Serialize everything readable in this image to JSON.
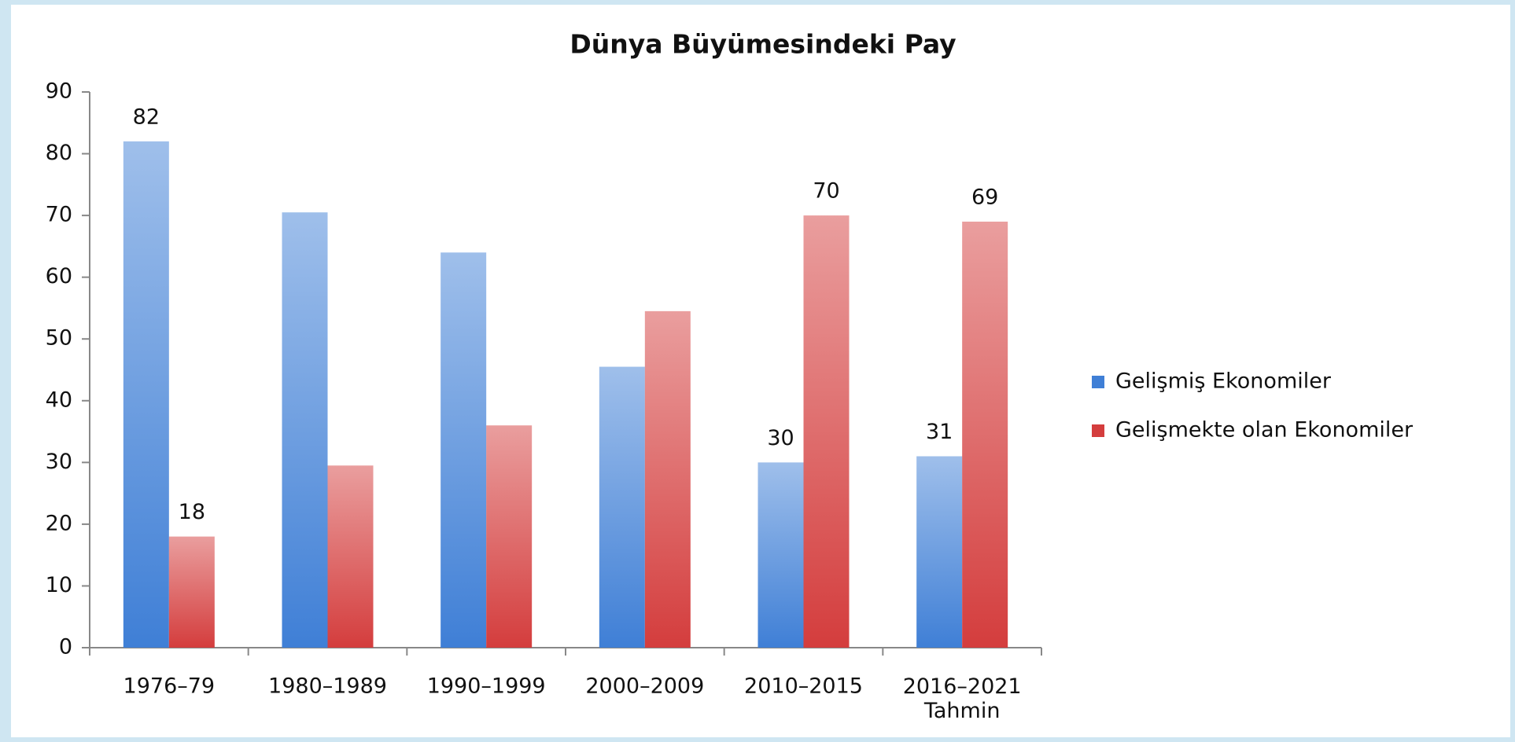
{
  "chart_data": {
    "type": "bar",
    "title": "Dünya Büyümesindeki Pay",
    "categories": [
      "1976–79",
      "1980–1989",
      "1990–1999",
      "2000–2009",
      "2010–2015",
      "2016–2021\nTahmin"
    ],
    "series": [
      {
        "name": "Gelişmiş Ekonomiler",
        "color": "#3f7fd6",
        "values": [
          82,
          70.5,
          64,
          45.5,
          30,
          31
        ],
        "value_labels": [
          "82",
          null,
          null,
          null,
          "30",
          "31"
        ]
      },
      {
        "name": "Gelişmekte olan Ekonomiler",
        "color": "#d43d3d",
        "values": [
          18,
          29.5,
          36,
          54.5,
          70,
          69
        ],
        "value_labels": [
          "18",
          null,
          null,
          null,
          "70",
          "69"
        ]
      }
    ],
    "ylim": [
      0,
      90
    ],
    "yticks": [
      0,
      10,
      20,
      30,
      40,
      50,
      60,
      70,
      80,
      90
    ],
    "grid": false,
    "legend": "right"
  }
}
